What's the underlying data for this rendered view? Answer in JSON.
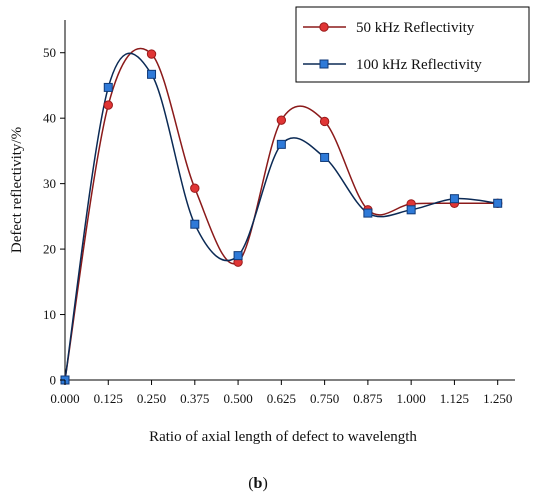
{
  "chart_data": {
    "type": "line",
    "xlabel": "Ratio of axial length of defect to wavelength",
    "ylabel": "Defect reflectivity/%",
    "x_ticks": [
      "0.000",
      "0.125",
      "0.250",
      "0.375",
      "0.500",
      "0.625",
      "0.750",
      "0.875",
      "1.000",
      "1.125",
      "1.250"
    ],
    "y_ticks": [
      "0",
      "10",
      "20",
      "30",
      "40",
      "50"
    ],
    "xlim": [
      0,
      1.3
    ],
    "ylim": [
      0,
      55
    ],
    "legend_position": "top-right",
    "grid": false,
    "x": [
      0.0,
      0.125,
      0.25,
      0.375,
      0.5,
      0.625,
      0.75,
      0.875,
      1.0,
      1.125,
      1.25
    ],
    "series": [
      {
        "name": "50 kHz Reflectivity",
        "color": "#d62728",
        "marker": "circle",
        "values": [
          0,
          42.0,
          49.8,
          29.3,
          18.0,
          39.7,
          39.5,
          26.0,
          26.9,
          27.0,
          27.0
        ]
      },
      {
        "name": "100 kHz Reflectivity",
        "color": "#1f6fd1",
        "marker": "square",
        "values": [
          0,
          44.7,
          46.7,
          23.8,
          19.0,
          36.0,
          34.0,
          25.5,
          26.0,
          27.7,
          27.0
        ]
      }
    ],
    "panel_label": "b"
  }
}
